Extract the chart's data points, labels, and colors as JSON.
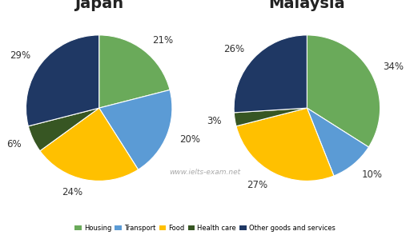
{
  "japan": {
    "title": "Japan",
    "values": [
      21,
      20,
      24,
      6,
      29
    ],
    "labels": [
      "21%",
      "20%",
      "24%",
      "6%",
      "29%"
    ],
    "startangle": 90,
    "colors": [
      "#6aaa5a",
      "#5b9bd5",
      "#ffc000",
      "#375623",
      "#1f3864"
    ],
    "counterclock": false
  },
  "malaysia": {
    "title": "Malaysia",
    "values": [
      34,
      10,
      27,
      3,
      26
    ],
    "labels": [
      "34%",
      "10%",
      "27%",
      "3%",
      "26%"
    ],
    "startangle": 90,
    "colors": [
      "#6aaa5a",
      "#5b9bd5",
      "#ffc000",
      "#375623",
      "#1f3864"
    ],
    "counterclock": false
  },
  "legend_labels": [
    "Housing",
    "Transport",
    "Food",
    "Health care",
    "Other goods and services"
  ],
  "legend_colors": [
    "#6aaa5a",
    "#5b9bd5",
    "#ffc000",
    "#375623",
    "#1f3864"
  ],
  "watermark": "www.ielts-exam.net",
  "watermark_color": "#aaaaaa",
  "title_fontsize": 14,
  "label_fontsize": 8.5,
  "background_color": "#ffffff"
}
